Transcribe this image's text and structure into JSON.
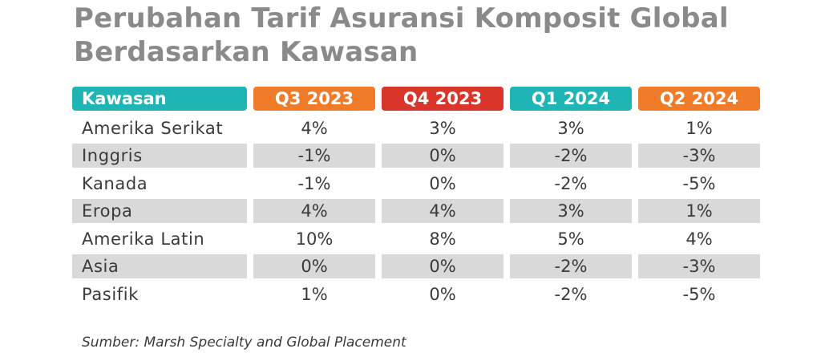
{
  "title_lines": [
    "Perubahan Tarif Asuransi Komposit Global",
    "Berdasarkan Kawasan"
  ],
  "source": "Sumber: Marsh Specialty and Global Placement",
  "colors": {
    "title": "#8a8a8a",
    "header_teal": "#1fb5b5",
    "header_orange": "#f07c2a",
    "header_red": "#d9352a",
    "row_shade": "#d9d9d9"
  },
  "chart_data": {
    "type": "table",
    "title": "Perubahan Tarif Asuransi Komposit Global Berdasarkan Kawasan",
    "columns": [
      {
        "label": "Kawasan",
        "color": "#1fb5b5"
      },
      {
        "label": "Q3 2023",
        "color": "#f07c2a"
      },
      {
        "label": "Q4 2023",
        "color": "#d9352a"
      },
      {
        "label": "Q1 2024",
        "color": "#1fb5b5"
      },
      {
        "label": "Q2 2024",
        "color": "#f07c2a"
      }
    ],
    "rows": [
      {
        "region": "Amerika Serikat",
        "values": [
          "4%",
          "3%",
          "3%",
          "1%"
        ]
      },
      {
        "region": "Inggris",
        "values": [
          "-1%",
          "0%",
          "-2%",
          "-3%"
        ]
      },
      {
        "region": "Kanada",
        "values": [
          "-1%",
          "0%",
          "-2%",
          "-5%"
        ]
      },
      {
        "region": "Eropa",
        "values": [
          "4%",
          "4%",
          "3%",
          "1%"
        ]
      },
      {
        "region": "Amerika Latin",
        "values": [
          "10%",
          "8%",
          "5%",
          "4%"
        ]
      },
      {
        "region": "Asia",
        "values": [
          "0%",
          "0%",
          "-2%",
          "-3%"
        ]
      },
      {
        "region": "Pasifik",
        "values": [
          "1%",
          "0%",
          "-2%",
          "-5%"
        ]
      }
    ],
    "shaded_rows": [
      1,
      3,
      5
    ]
  }
}
